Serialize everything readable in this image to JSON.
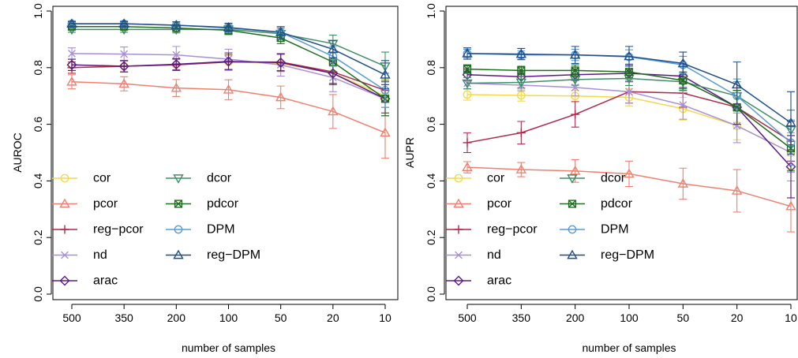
{
  "chart_data": [
    {
      "type": "line",
      "ylabel": "AUROC",
      "xlabel": "number of samples",
      "categories": [
        "500",
        "350",
        "200",
        "100",
        "50",
        "20",
        "10"
      ],
      "ylim": [
        0,
        1
      ],
      "yticks": [
        0.0,
        0.2,
        0.4,
        0.6,
        0.8,
        1.0
      ],
      "ytick_labels": [
        "0.0",
        "0.2",
        "0.4",
        "0.6",
        "0.8",
        "1.0"
      ],
      "grid": false,
      "legend_position": "bottom-left",
      "series": [
        {
          "name": "cor",
          "color": "#f5d94b",
          "marker": "circle",
          "values": [
            0.81,
            0.805,
            0.81,
            0.82,
            0.815,
            0.78,
            0.7
          ],
          "errors": [
            0.02,
            0.02,
            0.02,
            0.03,
            0.03,
            0.04,
            0.06
          ]
        },
        {
          "name": "pcor",
          "color": "#f08070",
          "marker": "triangle-up",
          "values": [
            0.75,
            0.743,
            0.728,
            0.722,
            0.695,
            0.645,
            0.57
          ],
          "errors": [
            0.025,
            0.025,
            0.03,
            0.035,
            0.04,
            0.06,
            0.09
          ]
        },
        {
          "name": "reg−pcor",
          "color": "#b0294a",
          "marker": "plus",
          "values": [
            0.8,
            0.805,
            0.81,
            0.82,
            0.82,
            0.785,
            0.72
          ],
          "errors": [
            0.02,
            0.02,
            0.02,
            0.025,
            0.03,
            0.04,
            0.06
          ]
        },
        {
          "name": "nd",
          "color": "#a98fd8",
          "marker": "cross",
          "values": [
            0.85,
            0.848,
            0.845,
            0.83,
            0.81,
            0.765,
            0.69
          ],
          "errors": [
            0.02,
            0.025,
            0.03,
            0.035,
            0.04,
            0.05,
            0.06
          ]
        },
        {
          "name": "arac",
          "color": "#5b1a88",
          "marker": "diamond",
          "values": [
            0.81,
            0.805,
            0.812,
            0.822,
            0.818,
            0.78,
            0.69
          ],
          "errors": [
            0.02,
            0.02,
            0.02,
            0.03,
            0.03,
            0.04,
            0.05
          ]
        },
        {
          "name": "dcor",
          "color": "#3e8f68",
          "marker": "triangle-down",
          "values": [
            0.935,
            0.935,
            0.935,
            0.935,
            0.92,
            0.885,
            0.805
          ],
          "errors": [
            0.01,
            0.01,
            0.012,
            0.015,
            0.02,
            0.03,
            0.05
          ]
        },
        {
          "name": "pdcor",
          "color": "#1f6e1f",
          "marker": "square-cross",
          "values": [
            0.945,
            0.945,
            0.94,
            0.932,
            0.905,
            0.82,
            0.69
          ],
          "errors": [
            0.01,
            0.01,
            0.012,
            0.015,
            0.02,
            0.035,
            0.06
          ]
        },
        {
          "name": "DPM",
          "color": "#5b9bd5",
          "marker": "circle",
          "values": [
            0.955,
            0.955,
            0.95,
            0.94,
            0.925,
            0.84,
            0.72
          ],
          "errors": [
            0.01,
            0.01,
            0.012,
            0.015,
            0.02,
            0.035,
            0.06
          ]
        },
        {
          "name": "reg−DPM",
          "color": "#1f4e8c",
          "marker": "triangle-up",
          "values": [
            0.955,
            0.955,
            0.95,
            0.942,
            0.925,
            0.865,
            0.775
          ],
          "errors": [
            0.008,
            0.008,
            0.012,
            0.015,
            0.02,
            0.03,
            0.05
          ]
        }
      ]
    },
    {
      "type": "line",
      "ylabel": "AUPR",
      "xlabel": "number of samples",
      "categories": [
        "500",
        "350",
        "200",
        "100",
        "50",
        "20",
        "10"
      ],
      "ylim": [
        0,
        1
      ],
      "yticks": [
        0.0,
        0.2,
        0.4,
        0.6,
        0.8,
        1.0
      ],
      "ytick_labels": [
        "0.0",
        "0.2",
        "0.4",
        "0.6",
        "0.8",
        "1.0"
      ],
      "grid": false,
      "legend_position": "bottom-left",
      "series": [
        {
          "name": "cor",
          "color": "#f5d94b",
          "marker": "circle",
          "values": [
            0.705,
            0.702,
            0.7,
            0.695,
            0.655,
            0.595,
            0.5
          ],
          "errors": [
            0.02,
            0.02,
            0.02,
            0.03,
            0.04,
            0.05,
            0.06
          ]
        },
        {
          "name": "pcor",
          "color": "#f08070",
          "marker": "triangle-up",
          "values": [
            0.448,
            0.44,
            0.435,
            0.425,
            0.39,
            0.365,
            0.31
          ],
          "errors": [
            0.02,
            0.025,
            0.04,
            0.045,
            0.055,
            0.075,
            0.09
          ]
        },
        {
          "name": "reg−pcor",
          "color": "#b0294a",
          "marker": "plus",
          "values": [
            0.535,
            0.57,
            0.635,
            0.715,
            0.71,
            0.66,
            0.54
          ],
          "errors": [
            0.035,
            0.04,
            0.045,
            0.04,
            0.05,
            0.06,
            0.07
          ]
        },
        {
          "name": "nd",
          "color": "#a98fd8",
          "marker": "cross",
          "values": [
            0.745,
            0.738,
            0.73,
            0.715,
            0.668,
            0.595,
            0.5
          ],
          "errors": [
            0.02,
            0.02,
            0.03,
            0.04,
            0.05,
            0.06,
            0.07
          ]
        },
        {
          "name": "arac",
          "color": "#5b1a88",
          "marker": "diamond",
          "values": [
            0.775,
            0.768,
            0.775,
            0.78,
            0.77,
            0.66,
            0.45
          ],
          "errors": [
            0.02,
            0.02,
            0.02,
            0.03,
            0.04,
            0.06,
            0.11
          ]
        },
        {
          "name": "dcor",
          "color": "#3e8f68",
          "marker": "triangle-down",
          "values": [
            0.745,
            0.748,
            0.758,
            0.762,
            0.75,
            0.7,
            0.58
          ],
          "errors": [
            0.02,
            0.02,
            0.02,
            0.025,
            0.03,
            0.05,
            0.07
          ]
        },
        {
          "name": "pdcor",
          "color": "#1f6e1f",
          "marker": "square-cross",
          "values": [
            0.795,
            0.79,
            0.79,
            0.785,
            0.755,
            0.66,
            0.515
          ],
          "errors": [
            0.015,
            0.015,
            0.02,
            0.02,
            0.03,
            0.06,
            0.08
          ]
        },
        {
          "name": "DPM",
          "color": "#5b9bd5",
          "marker": "circle",
          "values": [
            0.85,
            0.845,
            0.845,
            0.838,
            0.81,
            0.7,
            0.535
          ],
          "errors": [
            0.015,
            0.015,
            0.02,
            0.025,
            0.03,
            0.06,
            0.08
          ]
        },
        {
          "name": "reg−DPM",
          "color": "#1f4e8c",
          "marker": "triangle-up",
          "values": [
            0.85,
            0.848,
            0.845,
            0.84,
            0.815,
            0.74,
            0.605
          ],
          "errors": [
            0.02,
            0.02,
            0.03,
            0.035,
            0.04,
            0.08,
            0.11
          ]
        }
      ]
    }
  ]
}
